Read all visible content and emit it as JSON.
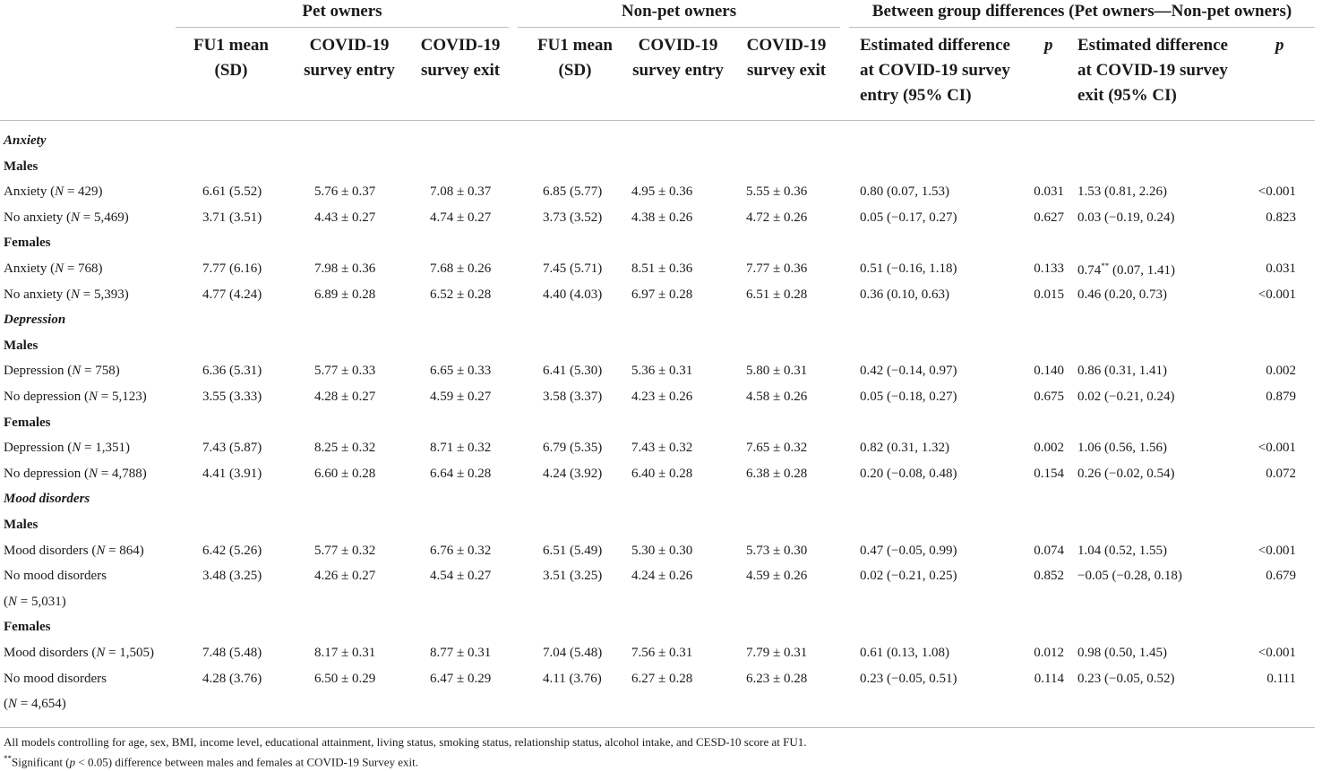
{
  "header": {
    "groups": [
      "Pet owners",
      "Non-pet owners",
      "Between group differences (Pet owners—Non-pet owners)"
    ],
    "columns": [
      "FU1 mean\n(SD)",
      "COVID-19\nsurvey entry",
      "COVID-19\nsurvey exit",
      "FU1 mean\n(SD)",
      "COVID-19\nsurvey entry",
      "COVID-19\nsurvey exit",
      "Estimated difference\nat COVID-19 survey\nentry (95% CI)",
      "p",
      "Estimated difference\nat COVID-19 survey\nexit (95% CI)",
      "p"
    ]
  },
  "rows": [
    {
      "type": "section",
      "label": "Anxiety"
    },
    {
      "type": "sub",
      "label": "Males"
    },
    {
      "type": "data",
      "label_pre": "Anxiety (",
      "label_n": "N",
      "label_post": " = 429)",
      "cells": [
        "6.61 (5.52)",
        "5.76 ± 0.37",
        "7.08 ± 0.37",
        "6.85 (5.77)",
        "4.95 ± 0.36",
        "5.55 ± 0.36",
        "0.80 (0.07, 1.53)",
        "0.031",
        "1.53 (0.81, 2.26)",
        "<0.001"
      ]
    },
    {
      "type": "data",
      "label_pre": "No anxiety (",
      "label_n": "N",
      "label_post": " = 5,469)",
      "cells": [
        "3.71 (3.51)",
        "4.43 ± 0.27",
        "4.74 ± 0.27",
        "3.73 (3.52)",
        "4.38 ± 0.26",
        "4.72 ± 0.26",
        "0.05 (−0.17, 0.27)",
        "0.627",
        "0.03 (−0.19, 0.24)",
        "0.823"
      ]
    },
    {
      "type": "sub",
      "label": "Females"
    },
    {
      "type": "data",
      "label_pre": "Anxiety (",
      "label_n": "N",
      "label_post": " = 768)",
      "cells": [
        "7.77 (6.16)",
        "7.98 ± 0.36",
        "7.68 ± 0.26",
        "7.45 (5.71)",
        "8.51 ± 0.36",
        "7.77 ± 0.36",
        "0.51 (−0.16, 1.18)",
        "0.133",
        "0.74** (0.07, 1.41)",
        "0.031"
      ]
    },
    {
      "type": "data",
      "label_pre": "No anxiety (",
      "label_n": "N",
      "label_post": " = 5,393)",
      "cells": [
        "4.77 (4.24)",
        "6.89 ± 0.28",
        "6.52 ± 0.28",
        "4.40 (4.03)",
        "6.97 ± 0.28",
        "6.51 ± 0.28",
        "0.36 (0.10, 0.63)",
        "0.015",
        "0.46 (0.20, 0.73)",
        "<0.001"
      ]
    },
    {
      "type": "section",
      "label": "Depression"
    },
    {
      "type": "sub",
      "label": "Males"
    },
    {
      "type": "data",
      "label_pre": "Depression (",
      "label_n": "N",
      "label_post": " = 758)",
      "cells": [
        "6.36 (5.31)",
        "5.77 ± 0.33",
        "6.65 ± 0.33",
        "6.41 (5.30)",
        "5.36 ± 0.31",
        "5.80 ± 0.31",
        "0.42 (−0.14, 0.97)",
        "0.140",
        "0.86 (0.31, 1.41)",
        "0.002"
      ]
    },
    {
      "type": "data",
      "label_pre": "No depression (",
      "label_n": "N",
      "label_post": " = 5,123)",
      "cells": [
        "3.55 (3.33)",
        "4.28 ± 0.27",
        "4.59 ± 0.27",
        "3.58 (3.37)",
        "4.23 ± 0.26",
        "4.58 ± 0.26",
        "0.05 (−0.18, 0.27)",
        "0.675",
        "0.02 (−0.21, 0.24)",
        "0.879"
      ]
    },
    {
      "type": "sub",
      "label": "Females"
    },
    {
      "type": "data",
      "label_pre": "Depression (",
      "label_n": "N",
      "label_post": " = 1,351)",
      "cells": [
        "7.43 (5.87)",
        "8.25 ± 0.32",
        "8.71 ± 0.32",
        "6.79 (5.35)",
        "7.43 ± 0.32",
        "7.65 ± 0.32",
        "0.82 (0.31, 1.32)",
        "0.002",
        "1.06 (0.56, 1.56)",
        "<0.001"
      ]
    },
    {
      "type": "data",
      "label_pre": "No depression (",
      "label_n": "N",
      "label_post": " = 4,788)",
      "cells": [
        "4.41 (3.91)",
        "6.60 ± 0.28",
        "6.64 ± 0.28",
        "4.24 (3.92)",
        "6.40 ± 0.28",
        "6.38 ± 0.28",
        "0.20 (−0.08, 0.48)",
        "0.154",
        "0.26 (−0.02, 0.54)",
        "0.072"
      ]
    },
    {
      "type": "section",
      "label": "Mood disorders"
    },
    {
      "type": "sub",
      "label": "Males"
    },
    {
      "type": "data",
      "label_pre": "Mood disorders (",
      "label_n": "N",
      "label_post": " = 864)",
      "cells": [
        "6.42 (5.26)",
        "5.77 ± 0.32",
        "6.76 ± 0.32",
        "6.51 (5.49)",
        "5.30 ± 0.30",
        "5.73 ± 0.30",
        "0.47 (−0.05, 0.99)",
        "0.074",
        "1.04 (0.52, 1.55)",
        "<0.001"
      ]
    },
    {
      "type": "data",
      "label_pre": "No mood disorders",
      "label_n": "",
      "label_post": "",
      "cells": [
        "3.48 (3.25)",
        "4.26 ± 0.27",
        "4.54 ± 0.27",
        "3.51 (3.25)",
        "4.24 ± 0.26",
        "4.59 ± 0.26",
        "0.02 (−0.21, 0.25)",
        "0.852",
        "−0.05 (−0.28, 0.18)",
        "0.679"
      ]
    },
    {
      "type": "cont",
      "label_pre": "(",
      "label_n": "N",
      "label_post": " = 5,031)"
    },
    {
      "type": "sub",
      "label": "Females"
    },
    {
      "type": "data",
      "label_pre": "Mood disorders (",
      "label_n": "N",
      "label_post": " = 1,505)",
      "cells": [
        "7.48 (5.48)",
        "8.17 ± 0.31",
        "8.77 ± 0.31",
        "7.04 (5.48)",
        "7.56 ± 0.31",
        "7.79 ± 0.31",
        "0.61 (0.13, 1.08)",
        "0.012",
        "0.98 (0.50, 1.45)",
        "<0.001"
      ]
    },
    {
      "type": "data",
      "label_pre": "No mood disorders",
      "label_n": "",
      "label_post": "",
      "cells": [
        "4.28 (3.76)",
        "6.50 ± 0.29",
        "6.47 ± 0.29",
        "4.11 (3.76)",
        "6.27 ± 0.28",
        "6.23 ± 0.28",
        "0.23 (−0.05, 0.51)",
        "0.114",
        "0.23 (−0.05, 0.52)",
        "0.111"
      ]
    },
    {
      "type": "cont",
      "label_pre": "(",
      "label_n": "N",
      "label_post": " = 4,654)"
    }
  ],
  "footnotes": {
    "note1": "All models controlling for age, sex, BMI, income level, educational attainment, living status, smoking status, relationship status, alcohol intake, and CESD-10 score at FU1.",
    "note2_sup": "**",
    "note2_pre": "Significant (",
    "note2_p": "p",
    "note2_post": " < 0.05) difference between males and females at COVID-19 Survey exit."
  }
}
